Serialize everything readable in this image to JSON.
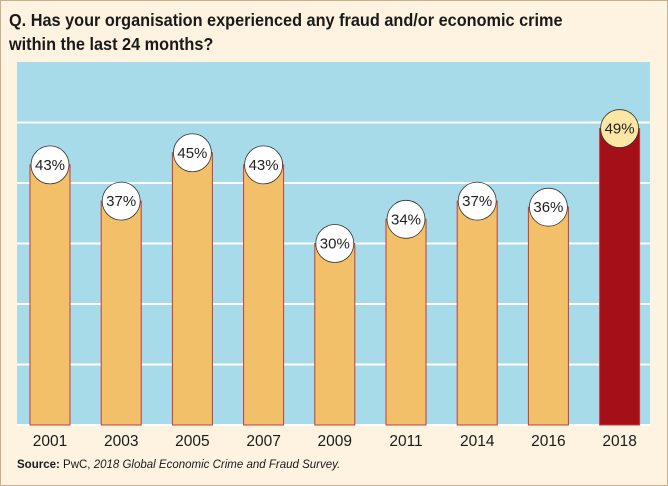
{
  "header": {
    "title": "Q. Has your organisation experienced any fraud and/or economic crime within the last 24 months?"
  },
  "footer": {
    "source_label": "Source:",
    "source_org": " PwC, ",
    "source_title": "2018 Global Economic Crime and Fraud Survey."
  },
  "colors": {
    "background": "#fdf3e0",
    "plot_area": "#a8dbe9",
    "bar": "#f2c069",
    "bar_highlight": "#a50f17",
    "bar_outline": "#c03a3a",
    "label_bubble": "#ffffff",
    "label_bubble_highlight": "#fbe6a4"
  },
  "chart_data": {
    "type": "bar",
    "categories": [
      "2001",
      "2003",
      "2005",
      "2007",
      "2009",
      "2011",
      "2014",
      "2016",
      "2018"
    ],
    "values": [
      43,
      37,
      45,
      43,
      30,
      34,
      37,
      36,
      49
    ],
    "data_labels": [
      "43%",
      "37%",
      "45%",
      "43%",
      "30%",
      "34%",
      "37%",
      "36%",
      "49%"
    ],
    "highlight_category": "2018",
    "ylim": [
      0,
      60
    ],
    "grid": true,
    "legend": "none",
    "xlabel": "",
    "ylabel": ""
  }
}
